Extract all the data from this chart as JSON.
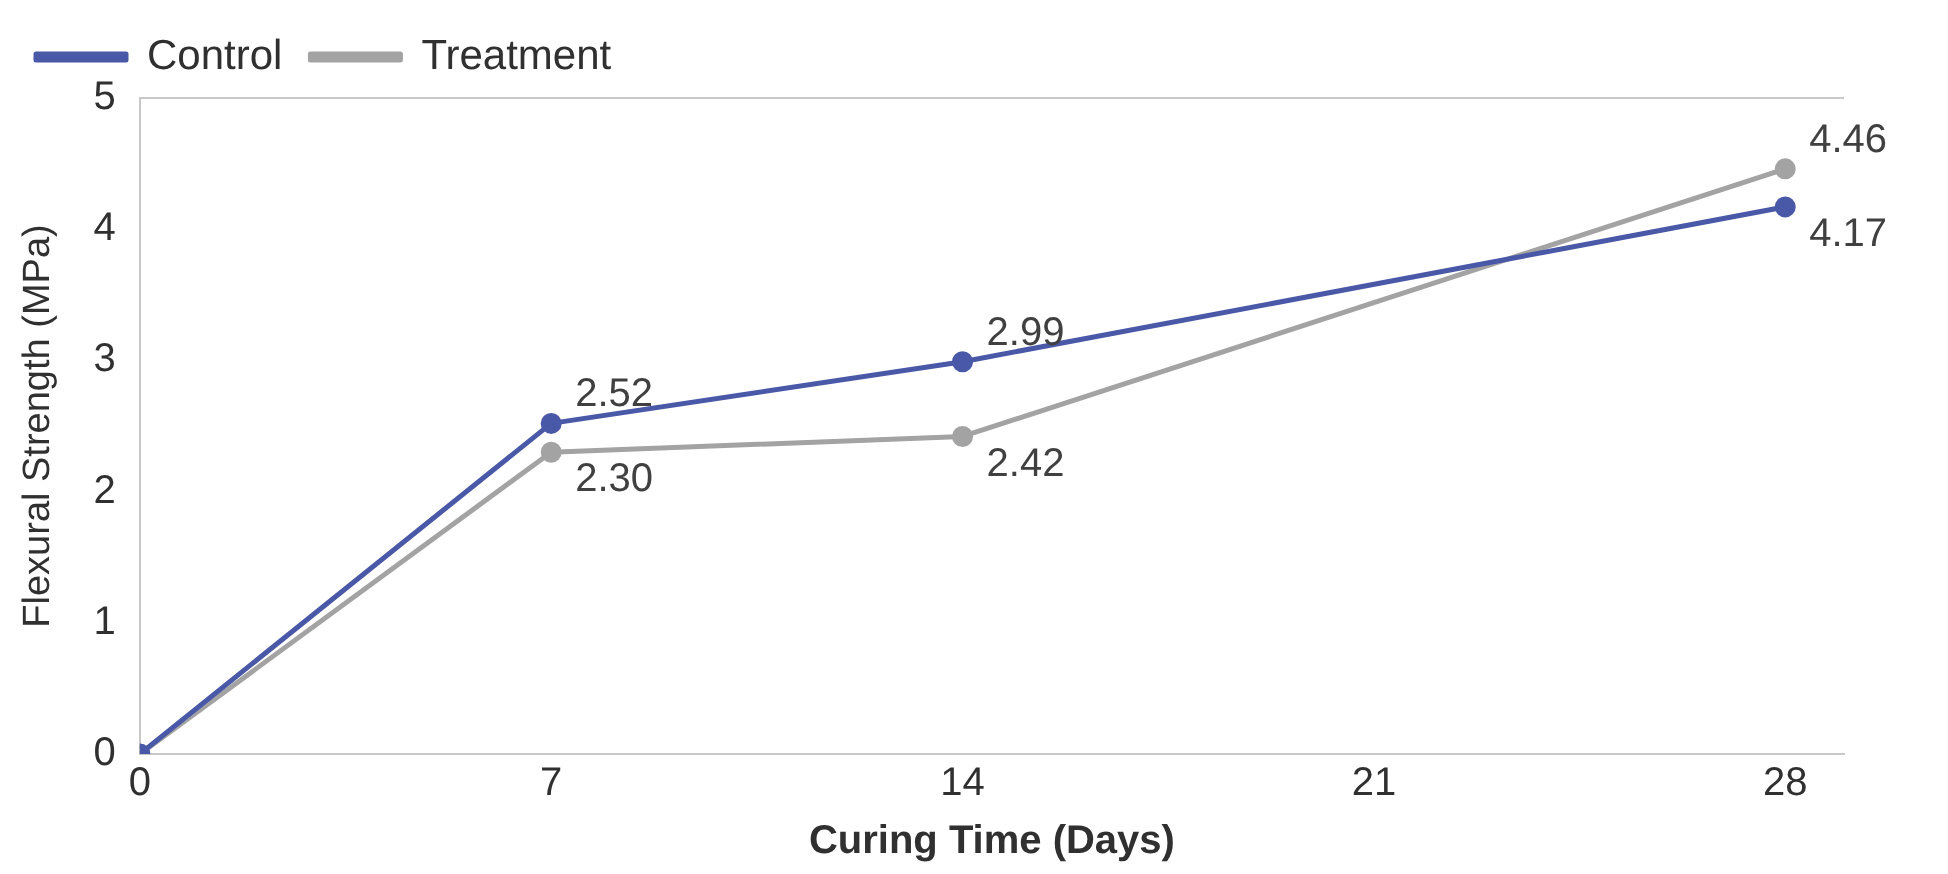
{
  "chart_data": {
    "type": "line",
    "xlabel": "Curing Time (Days)",
    "ylabel": "Flexural Strength (MPa)",
    "x": [
      0,
      7,
      14,
      28
    ],
    "xlim": [
      0,
      29
    ],
    "xticks": [
      0,
      7,
      14,
      21,
      28
    ],
    "ylim": [
      0,
      5
    ],
    "yticks": [
      0,
      1,
      2,
      3,
      4,
      5
    ],
    "series": [
      {
        "name": "Control",
        "color": "#4a58a8",
        "values": [
          0,
          2.52,
          2.99,
          4.17
        ],
        "value_labels": [
          null,
          "2.52",
          "2.99",
          "4.17"
        ]
      },
      {
        "name": "Treatment",
        "color": "#a3a3a3",
        "values": [
          0,
          2.3,
          2.42,
          4.46
        ],
        "value_labels": [
          null,
          "2.30",
          "2.42",
          "4.46"
        ]
      }
    ],
    "marker": "circle",
    "legend": "top left",
    "grid": false
  }
}
